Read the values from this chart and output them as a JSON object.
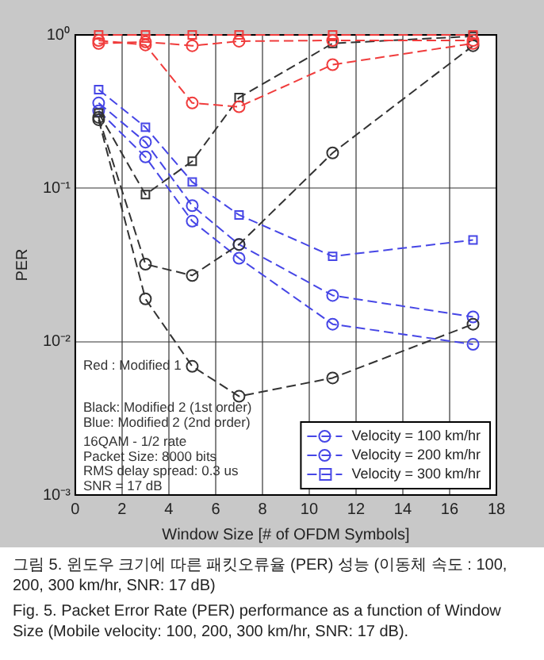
{
  "chart_data": {
    "type": "line",
    "xlabel": "Window Size [# of OFDM Symbols]",
    "ylabel": "PER",
    "x": [
      1,
      3,
      5,
      7,
      11,
      17
    ],
    "series": [
      {
        "color": "#f03c3c",
        "marker": "circle",
        "values": [
          0.92,
          0.86,
          0.36,
          0.34,
          0.64,
          0.88
        ]
      },
      {
        "color": "#f03c3c",
        "marker": "circle",
        "values": [
          0.88,
          0.9,
          0.85,
          0.91,
          0.92,
          0.92
        ]
      },
      {
        "color": "#f03c3c",
        "marker": "square",
        "values": [
          1.0,
          1.0,
          1.0,
          1.0,
          1.0,
          1.0
        ]
      },
      {
        "color": "#333333",
        "marker": "circle",
        "values": [
          0.28,
          0.019,
          0.0069,
          0.0044,
          0.0058,
          0.013
        ]
      },
      {
        "color": "#333333",
        "marker": "circle",
        "values": [
          0.29,
          0.032,
          0.027,
          0.043,
          0.17,
          0.85
        ]
      },
      {
        "color": "#333333",
        "marker": "square",
        "values": [
          0.31,
          0.091,
          0.15,
          0.39,
          0.88,
          0.98
        ]
      },
      {
        "name": "Velocity = 100 km/hr",
        "color": "#4646e6",
        "marker": "circle",
        "values": [
          0.32,
          0.16,
          0.061,
          0.035,
          0.013,
          0.0096
        ]
      },
      {
        "name": "Velocity = 200 km/hr",
        "color": "#4646e6",
        "marker": "circle",
        "values": [
          0.36,
          0.2,
          0.077,
          0.043,
          0.02,
          0.0145
        ]
      },
      {
        "name": "Velocity = 300 km/hr",
        "color": "#4646e6",
        "marker": "square",
        "values": [
          0.44,
          0.25,
          0.11,
          0.067,
          0.036,
          0.046
        ]
      }
    ],
    "line_style": "dashed",
    "log": "y",
    "grid": true,
    "legend": "bottom right",
    "xlim": [
      0,
      18
    ],
    "xticks": [
      0,
      2,
      4,
      6,
      8,
      10,
      12,
      14,
      16,
      18
    ],
    "ylim": [
      0.001,
      1
    ],
    "yticks": [
      {
        "value": 0.001,
        "label": "10⁻³"
      },
      {
        "value": 0.01,
        "label": "10⁻²"
      },
      {
        "value": 0.1,
        "label": "10⁻¹"
      },
      {
        "value": 1,
        "label": "10⁰"
      }
    ],
    "annotations": [
      "Red : Modified 1",
      "Black: Modified 2 (1st order)",
      "Blue: Modified 2 (2nd order)",
      "16QAM - 1/2 rate",
      "Packet Size: 8000 bits",
      "RMS delay spread: 0.3 us",
      "SNR = 17 dB",
      "그림 5. 윈도우 크기에 따른 패킷오류율 (PER) 성능 (이동체 속도 : 100, 200, 300 km/hr, SNR: 17 dB)",
      "Fig. 5. Packet Error Rate (PER) performance as a function of Window Size (Mobile velocity: 100, 200, 300 km/hr, SNR: 17 dB)."
    ]
  }
}
